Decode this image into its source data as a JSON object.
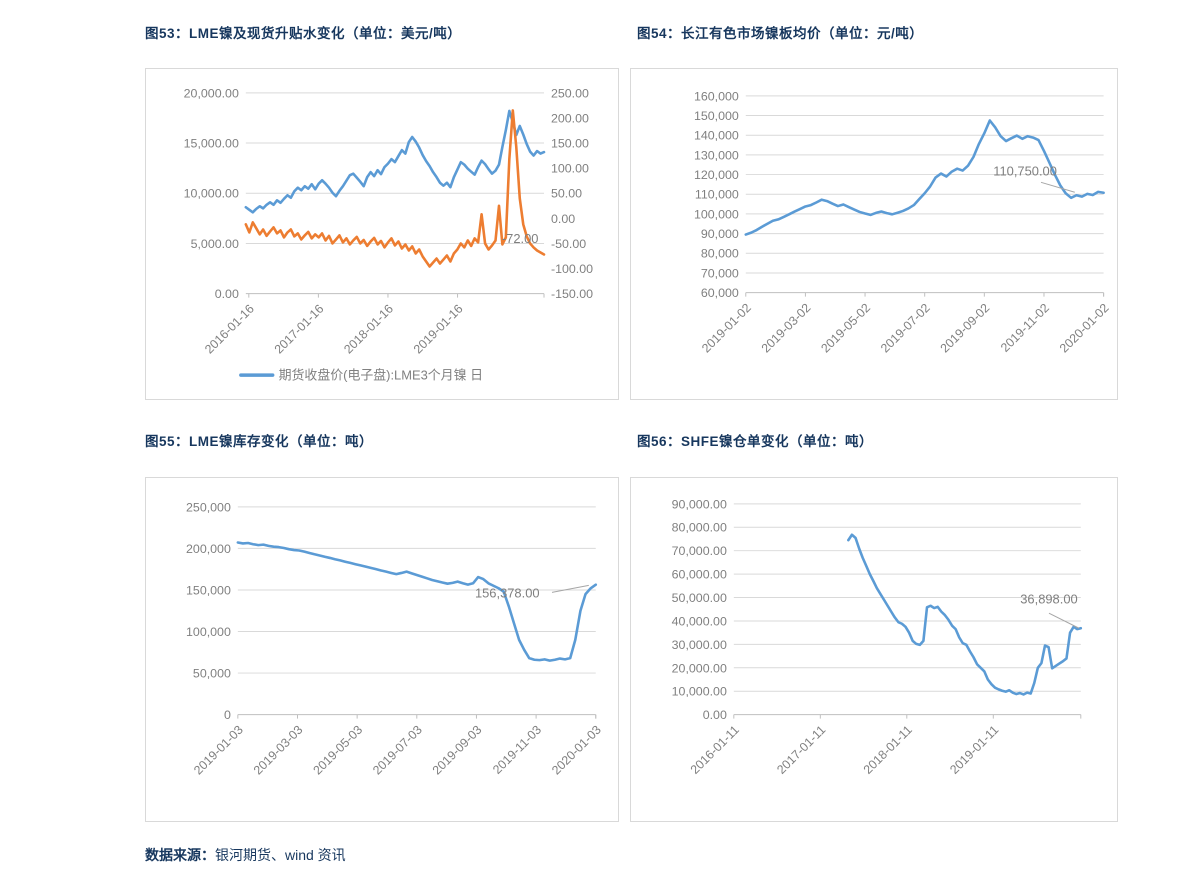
{
  "page": {
    "source": {
      "label": "数据来源：",
      "text": "银河期货、wind 资讯"
    }
  },
  "figures": [
    {
      "title": "图53：LME镍及现货升贴水变化（单位：美元/吨）"
    },
    {
      "title": "图54：长江有色市场镍板均价（单位：元/吨）"
    },
    {
      "title": "图55：LME镍库存变化（单位：吨）"
    },
    {
      "title": "图56：SHFE镍仓单变化（单位：吨）"
    }
  ],
  "colors": {
    "title": "#17375E",
    "axis_text": "#808080",
    "gridline": "#D9D9D9",
    "axis_line": "#BFBFBF",
    "leader": "#A6A6A6",
    "annotation": "#7F7F7F",
    "blue": "#5B9BD5",
    "orange": "#ED7D31"
  },
  "chart_data": [
    {
      "type": "line",
      "title": "图53：LME镍及现货升贴水变化（单位：美元/吨）",
      "y_left": {
        "min": 0,
        "max": 20000,
        "ticks": [
          "20,000.00",
          "15,000.00",
          "10,000.00",
          "5,000.00",
          "0.00"
        ]
      },
      "y_right": {
        "min": -150,
        "max": 250,
        "ticks": [
          "250.00",
          "200.00",
          "150.00",
          "100.00",
          "50.00",
          "0.00",
          "-50.00",
          "-100.00",
          "-150.00"
        ]
      },
      "x_ticks": [
        "2016-01-16",
        "2017-01-16",
        "2018-01-16",
        "2019-01-16"
      ],
      "annotation": {
        "text": "-72.00"
      },
      "legend": [
        {
          "label": "期货收盘价(电子盘):LME3个月镍 日",
          "color_key": "blue"
        }
      ],
      "series": [
        {
          "name": "期货收盘价(电子盘):LME3个月镍 日",
          "axis": "left",
          "color_key": "blue",
          "x_start": 0,
          "values": [
            8600,
            8350,
            8100,
            8450,
            8700,
            8500,
            8850,
            9100,
            8850,
            9300,
            9050,
            9450,
            9800,
            9550,
            10200,
            10550,
            10300,
            10700,
            10450,
            10900,
            10400,
            10950,
            11300,
            10950,
            10550,
            10050,
            9700,
            10250,
            10700,
            11250,
            11800,
            11950,
            11550,
            11150,
            10700,
            11600,
            12100,
            11700,
            12300,
            11900,
            12600,
            12950,
            13400,
            13100,
            13700,
            14300,
            13950,
            15100,
            15600,
            15150,
            14550,
            13800,
            13200,
            12700,
            12100,
            11600,
            11050,
            10750,
            11050,
            10600,
            11600,
            12350,
            13100,
            12850,
            12450,
            12150,
            11850,
            12600,
            13250,
            12900,
            12400,
            11950,
            12250,
            12850,
            14600,
            16300,
            18200,
            17100,
            15800,
            16700,
            15850,
            14900,
            14150,
            13750,
            14200,
            13950,
            14100
          ]
        },
        {
          "name": "现货升贴水",
          "axis": "right",
          "color_key": "orange",
          "x_start": 0,
          "values": [
            -12,
            -28,
            -8,
            -20,
            -32,
            -22,
            -35,
            -26,
            -18,
            -30,
            -24,
            -38,
            -28,
            -22,
            -36,
            -30,
            -42,
            -34,
            -27,
            -40,
            -32,
            -38,
            -30,
            -44,
            -35,
            -50,
            -42,
            -34,
            -48,
            -40,
            -52,
            -44,
            -37,
            -50,
            -43,
            -55,
            -46,
            -39,
            -52,
            -45,
            -58,
            -48,
            -40,
            -54,
            -46,
            -60,
            -52,
            -64,
            -56,
            -70,
            -62,
            -76,
            -86,
            -96,
            -88,
            -80,
            -90,
            -82,
            -74,
            -86,
            -70,
            -62,
            -50,
            -58,
            -44,
            -55,
            -40,
            -48,
            8,
            -50,
            -62,
            -54,
            -44,
            25,
            -52,
            -38,
            118,
            215,
            142,
            40,
            -12,
            -36,
            -50,
            -58,
            -64,
            -68,
            -72
          ]
        }
      ]
    },
    {
      "type": "line",
      "title": "图54：长江有色市场镍板均价（单位：元/吨）",
      "y_left": {
        "min": 60000,
        "max": 160000,
        "ticks": [
          "160,000",
          "150,000",
          "140,000",
          "130,000",
          "120,000",
          "110,000",
          "100,000",
          "90,000",
          "80,000",
          "70,000",
          "60,000"
        ]
      },
      "x_ticks": [
        "2019-01-02",
        "2019-03-02",
        "2019-05-02",
        "2019-07-02",
        "2019-09-02",
        "2019-11-02",
        "2020-01-02"
      ],
      "annotation": {
        "text": "110,750.00"
      },
      "series": [
        {
          "axis": "left",
          "color_key": "blue",
          "x_start": 0,
          "values": [
            89500,
            90500,
            91800,
            93500,
            95000,
            96500,
            97200,
            98500,
            99800,
            101200,
            102500,
            103800,
            104500,
            105800,
            107200,
            106500,
            105200,
            104000,
            104800,
            103500,
            102200,
            101000,
            100200,
            99500,
            100500,
            101200,
            100400,
            99800,
            100600,
            101500,
            102800,
            104500,
            107500,
            110500,
            114000,
            118500,
            120500,
            119000,
            121500,
            123000,
            122000,
            124500,
            129000,
            135500,
            141000,
            147500,
            144000,
            139500,
            137000,
            138500,
            139800,
            138200,
            139500,
            138800,
            137500,
            132000,
            126000,
            120000,
            114500,
            110500,
            108200,
            109500,
            108800,
            110200,
            109600,
            111200,
            110750
          ]
        }
      ]
    },
    {
      "type": "line",
      "title": "图55：LME镍库存变化（单位：吨）",
      "y_left": {
        "min": 0,
        "max": 250000,
        "ticks": [
          "250,000",
          "200,000",
          "150,000",
          "100,000",
          "50,000",
          "0"
        ]
      },
      "x_ticks": [
        "2019-01-03",
        "2019-03-03",
        "2019-05-03",
        "2019-07-03",
        "2019-09-03",
        "2019-11-03",
        "2020-01-03"
      ],
      "annotation": {
        "text": "156,378.00"
      },
      "series": [
        {
          "axis": "left",
          "color_key": "blue",
          "x_start": 0,
          "values": [
            207000,
            206000,
            206500,
            205000,
            204000,
            204500,
            203000,
            202000,
            201500,
            200500,
            199000,
            198000,
            197500,
            196000,
            194500,
            193000,
            191500,
            190000,
            188500,
            187000,
            185500,
            184000,
            182500,
            181000,
            179500,
            178000,
            176500,
            175000,
            173500,
            172000,
            170500,
            169000,
            170500,
            172000,
            170000,
            168000,
            166000,
            164000,
            162000,
            160500,
            159000,
            157500,
            158500,
            160000,
            158000,
            156500,
            158000,
            165500,
            163000,
            158000,
            155000,
            152000,
            148000,
            130000,
            110000,
            90000,
            78000,
            68000,
            66000,
            65500,
            66500,
            65000,
            66000,
            67500,
            66500,
            68000,
            90000,
            125000,
            145000,
            152000,
            156378
          ]
        }
      ]
    },
    {
      "type": "line",
      "title": "图56：SHFE镍仓单变化（单位：吨）",
      "y_left": {
        "min": 0,
        "max": 90000,
        "ticks": [
          "90,000.00",
          "80,000.00",
          "70,000.00",
          "60,000.00",
          "50,000.00",
          "40,000.00",
          "30,000.00",
          "20,000.00",
          "10,000.00",
          "0.00"
        ]
      },
      "x_ticks": [
        "2016-01-11",
        "2017-01-11",
        "2018-01-11",
        "2019-01-11"
      ],
      "annotation": {
        "text": "36,898.00"
      },
      "series": [
        {
          "axis": "left",
          "color_key": "blue",
          "x_start": 0.33,
          "values": [
            74500,
            76800,
            75500,
            71000,
            67000,
            63500,
            60000,
            57000,
            54000,
            51500,
            49000,
            46500,
            44000,
            41500,
            39500,
            38800,
            37500,
            35000,
            31500,
            30200,
            29800,
            31500,
            45800,
            46500,
            45500,
            46000,
            44000,
            42500,
            40500,
            38000,
            36500,
            33000,
            30500,
            29800,
            27000,
            24500,
            21500,
            20000,
            18500,
            15000,
            13000,
            11500,
            10800,
            10200,
            9800,
            10400,
            9400,
            8800,
            9200,
            8600,
            9400,
            9000,
            13500,
            20000,
            22000,
            29500,
            28800,
            19800,
            20800,
            21800,
            22800,
            24000,
            35000,
            37500,
            36500,
            36898
          ]
        }
      ]
    }
  ]
}
